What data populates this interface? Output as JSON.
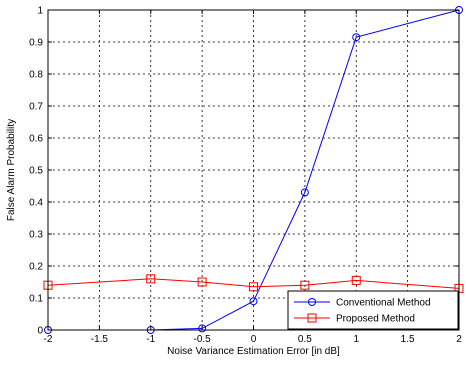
{
  "chart_data": {
    "type": "line",
    "xlabel": "Noise Variance Estimation Error [in dB]",
    "ylabel": "False Alarm Probability",
    "xlim": [
      -2,
      2
    ],
    "ylim": [
      0,
      1
    ],
    "xticks": [
      "-2",
      "-1.5",
      "-1",
      "-0.5",
      "0",
      "0.5",
      "1",
      "1.5",
      "2"
    ],
    "yticks": [
      "0",
      "0.1",
      "0.2",
      "0.3",
      "0.4",
      "0.5",
      "0.6",
      "0.7",
      "0.8",
      "0.9",
      "1"
    ],
    "grid": true,
    "legend_position": "bottom-right",
    "series": [
      {
        "name": "Conventional Method",
        "color": "#0000ff",
        "marker": "circle",
        "x": [
          -2,
          -1,
          -0.5,
          0,
          0.5,
          1,
          2
        ],
        "y": [
          0,
          0,
          0.005,
          0.09,
          0.43,
          0.915,
          1.0
        ]
      },
      {
        "name": "Proposed Method",
        "color": "#ff0000",
        "marker": "square",
        "x": [
          -2,
          -1,
          -0.5,
          0,
          0.5,
          1,
          2
        ],
        "y": [
          0.14,
          0.16,
          0.15,
          0.135,
          0.14,
          0.155,
          0.13
        ]
      }
    ]
  }
}
